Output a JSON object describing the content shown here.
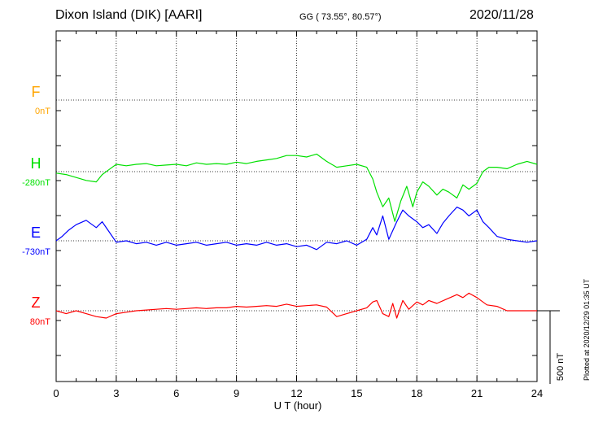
{
  "header": {
    "station": "Dixon Island (DIK)  [AARI]",
    "coords": "GG ( 73.55°,  80.57°)",
    "date": "2020/11/28"
  },
  "footer": {
    "plotted": "Plotted at 2020/12/29 01:35 UT"
  },
  "chart_data": {
    "type": "line",
    "xlabel": "U T (hour)",
    "xlim": [
      0,
      24
    ],
    "x_ticks": [
      0,
      3,
      6,
      9,
      12,
      15,
      18,
      21,
      24
    ],
    "grid": true,
    "scale_bar": {
      "label": "500 nT",
      "value_nT": 500
    },
    "colors": {
      "F": "#ffa500",
      "H": "#00e000",
      "E": "#0000ff",
      "Z": "#ff0000"
    },
    "series": [
      {
        "name": "F",
        "baseline_label": "0nT",
        "color": "#ffa500",
        "x": [],
        "values": []
      },
      {
        "name": "H",
        "baseline_label": "-280nT",
        "color": "#00e000",
        "x": [
          0,
          0.5,
          1,
          1.5,
          2,
          2.3,
          2.6,
          3,
          3.5,
          4,
          4.5,
          5,
          5.5,
          6,
          6.5,
          7,
          7.5,
          8,
          8.5,
          9,
          9.5,
          10,
          10.5,
          11,
          11.5,
          12,
          12.5,
          13,
          13.5,
          14,
          14.5,
          15,
          15.5,
          15.8,
          16,
          16.3,
          16.6,
          16.9,
          17.2,
          17.5,
          17.8,
          18,
          18.3,
          18.6,
          19,
          19.3,
          19.6,
          20,
          20.3,
          20.6,
          21,
          21.3,
          21.6,
          22,
          22.5,
          23,
          23.5,
          24
        ],
        "values": [
          -290,
          -300,
          -320,
          -340,
          -350,
          -300,
          -270,
          -230,
          -240,
          -230,
          -225,
          -240,
          -235,
          -230,
          -240,
          -220,
          -230,
          -225,
          -230,
          -215,
          -225,
          -210,
          -200,
          -190,
          -170,
          -170,
          -180,
          -160,
          -210,
          -250,
          -240,
          -230,
          -250,
          -330,
          -420,
          -520,
          -460,
          -620,
          -480,
          -380,
          -520,
          -420,
          -350,
          -380,
          -440,
          -400,
          -420,
          -460,
          -370,
          -400,
          -360,
          -280,
          -250,
          -250,
          -260,
          -230,
          -210,
          -230
        ]
      },
      {
        "name": "E",
        "baseline_label": "-730nT",
        "color": "#0000ff",
        "x": [
          0,
          0.3,
          0.6,
          1,
          1.5,
          2,
          2.3,
          2.6,
          3,
          3.5,
          4,
          4.5,
          5,
          5.5,
          6,
          6.5,
          7,
          7.5,
          8,
          8.5,
          9,
          9.5,
          10,
          10.5,
          11,
          11.5,
          12,
          12.5,
          13,
          13.5,
          14,
          14.5,
          15,
          15.5,
          15.8,
          16,
          16.3,
          16.6,
          17,
          17.3,
          17.6,
          18,
          18.3,
          18.6,
          19,
          19.3,
          19.6,
          20,
          20.3,
          20.6,
          21,
          21.3,
          21.6,
          22,
          22.5,
          23,
          23.5,
          24
        ],
        "values": [
          -730,
          -700,
          -660,
          -620,
          -590,
          -640,
          -600,
          -660,
          -740,
          -730,
          -750,
          -740,
          -760,
          -740,
          -760,
          -750,
          -740,
          -760,
          -750,
          -740,
          -760,
          -750,
          -760,
          -740,
          -760,
          -750,
          -770,
          -760,
          -790,
          -740,
          -750,
          -730,
          -760,
          -720,
          -640,
          -690,
          -560,
          -720,
          -600,
          -520,
          -560,
          -600,
          -640,
          -620,
          -680,
          -610,
          -560,
          -500,
          -520,
          -560,
          -520,
          -600,
          -640,
          -700,
          -720,
          -730,
          -740,
          -730
        ]
      },
      {
        "name": "Z",
        "baseline_label": "80nT",
        "color": "#ff0000",
        "x": [
          0,
          0.5,
          1,
          1.5,
          2,
          2.5,
          3,
          3.5,
          4,
          4.5,
          5,
          5.5,
          6,
          6.5,
          7,
          7.5,
          8,
          8.5,
          9,
          9.5,
          10,
          10.5,
          11,
          11.5,
          12,
          12.5,
          13,
          13.5,
          14,
          14.5,
          15,
          15.5,
          15.8,
          16,
          16.3,
          16.6,
          16.8,
          17,
          17.3,
          17.6,
          18,
          18.3,
          18.6,
          19,
          19.5,
          20,
          20.3,
          20.6,
          21,
          21.5,
          22,
          22.5,
          23,
          23.5,
          24
        ],
        "values": [
          80,
          60,
          80,
          60,
          40,
          30,
          60,
          70,
          80,
          85,
          90,
          95,
          90,
          95,
          100,
          95,
          100,
          100,
          110,
          105,
          110,
          115,
          110,
          125,
          110,
          115,
          120,
          105,
          40,
          60,
          80,
          100,
          140,
          150,
          60,
          40,
          130,
          30,
          150,
          90,
          140,
          120,
          150,
          130,
          160,
          190,
          170,
          200,
          170,
          120,
          110,
          80,
          80,
          80,
          80
        ]
      }
    ]
  }
}
